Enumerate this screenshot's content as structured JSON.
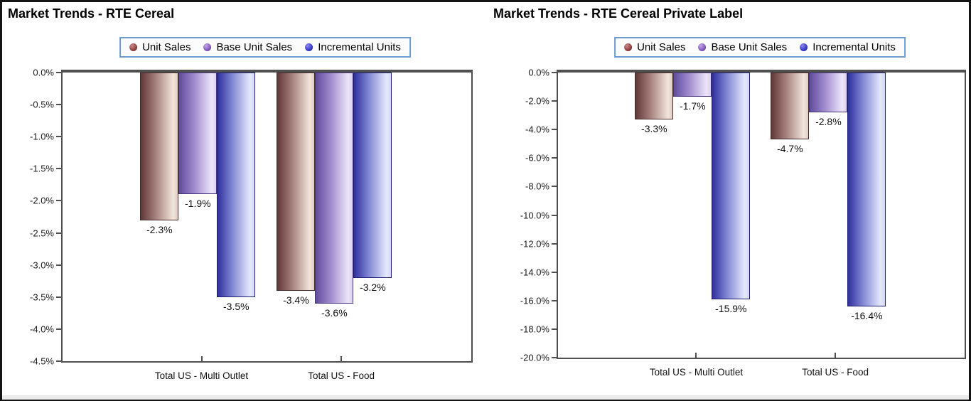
{
  "window": {
    "background": "#ffffff",
    "border_color": "#141414",
    "bottom_strip_color": "#ebebeb"
  },
  "axis": {
    "line_color": "#4f4f4f",
    "label_color": "#1a1a1a"
  },
  "legend": {
    "border_color": "#6f9bd3",
    "items": [
      {
        "key": "unit",
        "label": "Unit Sales"
      },
      {
        "key": "base",
        "label": "Base Unit Sales"
      },
      {
        "key": "incremental",
        "label": "Incremental Units"
      }
    ]
  },
  "series_colors": {
    "unit": {
      "dark": "#5e3737",
      "mid": "#a5807b",
      "light": "#f2e4dc",
      "edge": "#e0cdc3",
      "outline": "#472a2a",
      "bullet_hi": "#cc8d8d",
      "bullet": "#964444",
      "bullet_lo": "#5e2a2a"
    },
    "base": {
      "dark": "#5f4c9e",
      "mid": "#9e8acb",
      "light": "#ece5f9",
      "edge": "#dcd2f1",
      "outline": "#463579",
      "bullet_hi": "#c3a8e8",
      "bullet": "#8a5fc2",
      "bullet_lo": "#55357e"
    },
    "incremental": {
      "dark": "#2f2f9e",
      "mid": "#8187d3",
      "light": "#e5e8fb",
      "edge": "#d2d7f5",
      "outline": "#1f1f73",
      "bullet_hi": "#8d8df2",
      "bullet": "#3c3ccd",
      "bullet_lo": "#202086"
    }
  },
  "chart_data": [
    {
      "type": "bar",
      "title": "Market Trends - RTE Cereal",
      "legend_position": "top",
      "grid": false,
      "categories": [
        "Total US - Multi Outlet",
        "Total US - Food"
      ],
      "series": [
        {
          "name": "Unit Sales",
          "key": "unit",
          "values": [
            -2.3,
            -3.4
          ]
        },
        {
          "name": "Base Unit Sales",
          "key": "base",
          "values": [
            -1.9,
            -3.6
          ]
        },
        {
          "name": "Incremental Units",
          "key": "incremental",
          "values": [
            -3.5,
            -3.2
          ]
        }
      ],
      "data_labels": [
        [
          "-2.3%",
          "-1.9%",
          "-3.5%"
        ],
        [
          "-3.4%",
          "-3.6%",
          "-3.2%"
        ]
      ],
      "ylim": [
        -4.5,
        0
      ],
      "ytick_step": 0.5,
      "yticks": [
        "0.0%",
        "-0.5%",
        "-1.0%",
        "-1.5%",
        "-2.0%",
        "-2.5%",
        "-3.0%",
        "-3.5%",
        "-4.0%",
        "-4.5%"
      ]
    },
    {
      "type": "bar",
      "title": "Market Trends - RTE Cereal Private Label",
      "legend_position": "top",
      "grid": false,
      "categories": [
        "Total US - Multi Outlet",
        "Total US - Food"
      ],
      "series": [
        {
          "name": "Unit Sales",
          "key": "unit",
          "values": [
            -3.3,
            -4.7
          ]
        },
        {
          "name": "Base Unit Sales",
          "key": "base",
          "values": [
            -1.7,
            -2.8
          ]
        },
        {
          "name": "Incremental Units",
          "key": "incremental",
          "values": [
            -15.9,
            -16.4
          ]
        }
      ],
      "data_labels": [
        [
          "-3.3%",
          "-1.7%",
          "-15.9%"
        ],
        [
          "-4.7%",
          "-2.8%",
          "-16.4%"
        ]
      ],
      "ylim": [
        -20.0,
        0
      ],
      "ytick_step": 2.0,
      "yticks": [
        "0.0%",
        "-2.0%",
        "-4.0%",
        "-6.0%",
        "-8.0%",
        "-10.0%",
        "-12.0%",
        "-14.0%",
        "-16.0%",
        "-18.0%",
        "-20.0%"
      ]
    }
  ]
}
